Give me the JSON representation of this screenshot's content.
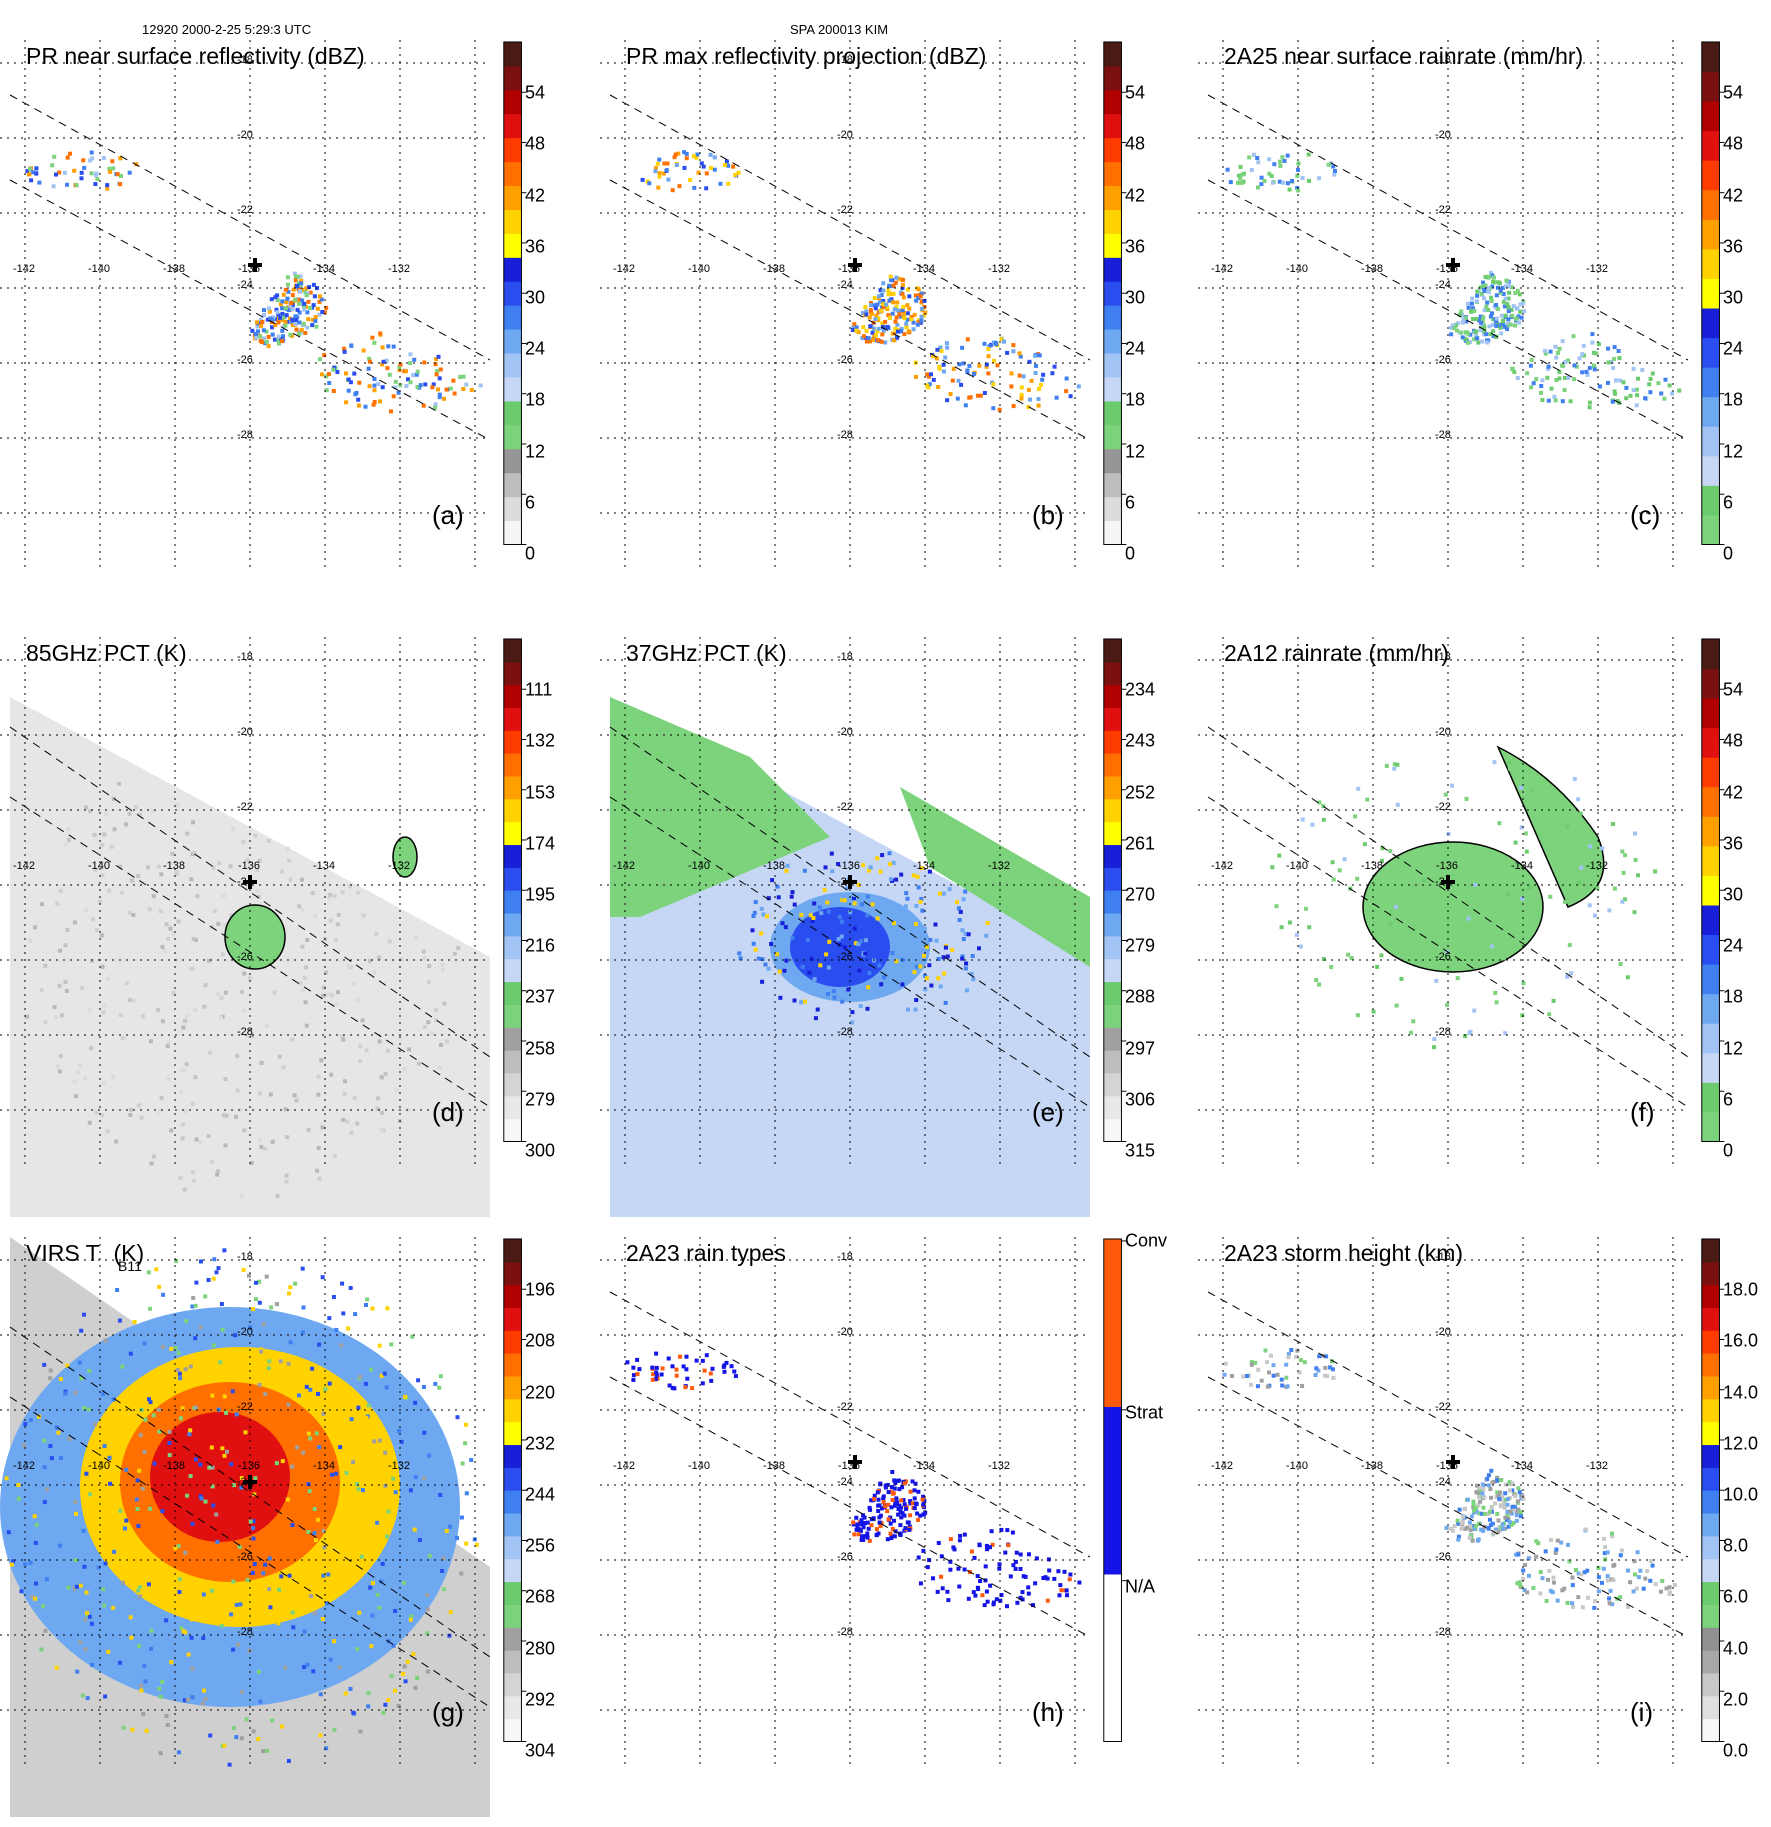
{
  "header": {
    "left": "12920 2000-2-25 5:29:3 UTC",
    "center": "SPA 200013 KIM"
  },
  "axes": {
    "lon_labels": [
      "-142",
      "-140",
      "-138",
      "-136",
      "-134",
      "-132"
    ],
    "lat_labels": [
      "-18",
      "-20",
      "-22",
      "-24",
      "-26",
      "-28"
    ]
  },
  "panels": [
    {
      "id": "a",
      "title": "PR near surface reflectivity (dBZ)",
      "label": "(a)",
      "type": "swath",
      "ticks": [
        "54",
        "48",
        "42",
        "36",
        "30",
        "24",
        "18",
        "12",
        "6",
        "0"
      ],
      "colors": [
        "#f5f5f5",
        "#dcdcdc",
        "#bdbdbd",
        "#969696",
        "#7cd37c",
        "#6ccb6c",
        "#c6d6f5",
        "#a2c4f5",
        "#6ea8f0",
        "#3f7ff0",
        "#2a4df0",
        "#1720d8",
        "#ffff00",
        "#ffd200",
        "#ffa000",
        "#ff7000",
        "#ff3c00",
        "#e01010",
        "#b00000",
        "#7a1010",
        "#4a1a14"
      ]
    },
    {
      "id": "b",
      "title": "PR max reflectivity projection (dBZ)",
      "label": "(b)",
      "type": "swath-contour",
      "ticks": [
        "54",
        "48",
        "42",
        "36",
        "30",
        "24",
        "18",
        "12",
        "6",
        "0"
      ],
      "colors": [
        "#f5f5f5",
        "#dcdcdc",
        "#bdbdbd",
        "#969696",
        "#7cd37c",
        "#6ccb6c",
        "#c6d6f5",
        "#a2c4f5",
        "#6ea8f0",
        "#3f7ff0",
        "#2a4df0",
        "#1720d8",
        "#ffff00",
        "#ffd200",
        "#ffa000",
        "#ff7000",
        "#ff3c00",
        "#e01010",
        "#b00000",
        "#7a1010",
        "#4a1a14"
      ]
    },
    {
      "id": "c",
      "title": "2A25 near surface rainrate (mm/hr)",
      "label": "(c)",
      "type": "swath-green",
      "ticks": [
        "54",
        "48",
        "42",
        "36",
        "30",
        "24",
        "18",
        "12",
        "6",
        "0"
      ],
      "colors": [
        "#7cd37c",
        "#6ccb6c",
        "#c6d6f5",
        "#a2c4f5",
        "#6ea8f0",
        "#3f7ff0",
        "#2a4df0",
        "#1720d8",
        "#ffff00",
        "#ffd200",
        "#ffa000",
        "#ff7000",
        "#ff3c00",
        "#e01010",
        "#b00000",
        "#7a1010",
        "#4a1a14"
      ]
    },
    {
      "id": "d",
      "title": "85GHz PCT (K)",
      "label": "(d)",
      "type": "tmi-gray",
      "ticks": [
        "111",
        "132",
        "153",
        "174",
        "195",
        "216",
        "237",
        "258",
        "279",
        "300"
      ],
      "colors": [
        "#f7f7f7",
        "#e8e8e8",
        "#d4d4d4",
        "#bdbdbd",
        "#a0a0a0",
        "#7cd37c",
        "#6ccb6c",
        "#c6d6f5",
        "#a2c4f5",
        "#6ea8f0",
        "#3f7ff0",
        "#2a4df0",
        "#1720d8",
        "#ffff00",
        "#ffd200",
        "#ffa000",
        "#ff7000",
        "#ff3c00",
        "#e01010",
        "#b00000",
        "#7a1010",
        "#4a1a14"
      ]
    },
    {
      "id": "e",
      "title": "37GHz PCT (K)",
      "label": "(e)",
      "type": "tmi-blue",
      "ticks": [
        "234",
        "243",
        "252",
        "261",
        "270",
        "279",
        "288",
        "297",
        "306",
        "315"
      ],
      "colors": [
        "#f7f7f7",
        "#e8e8e8",
        "#d4d4d4",
        "#bdbdbd",
        "#a0a0a0",
        "#7cd37c",
        "#6ccb6c",
        "#c6d6f5",
        "#a2c4f5",
        "#6ea8f0",
        "#3f7ff0",
        "#2a4df0",
        "#1720d8",
        "#ffff00",
        "#ffd200",
        "#ffa000",
        "#ff7000",
        "#ff3c00",
        "#e01010",
        "#b00000",
        "#7a1010",
        "#4a1a14"
      ]
    },
    {
      "id": "f",
      "title": "2A12 rainrate (mm/hr)",
      "label": "(f)",
      "type": "tmi-green",
      "ticks": [
        "54",
        "48",
        "42",
        "36",
        "30",
        "24",
        "18",
        "12",
        "6",
        "0"
      ],
      "colors": [
        "#7cd37c",
        "#6ccb6c",
        "#c6d6f5",
        "#a2c4f5",
        "#6ea8f0",
        "#3f7ff0",
        "#2a4df0",
        "#1720d8",
        "#ffff00",
        "#ffd200",
        "#ffa000",
        "#ff7000",
        "#ff3c00",
        "#e01010",
        "#b00000",
        "#7a1010",
        "#4a1a14"
      ]
    },
    {
      "id": "g",
      "title": "VIRS T   (K)",
      "subscript": "B11",
      "label": "(g)",
      "type": "virs",
      "ticks": [
        "196",
        "208",
        "220",
        "232",
        "244",
        "256",
        "268",
        "280",
        "292",
        "304"
      ],
      "colors": [
        "#f7f7f7",
        "#e8e8e8",
        "#d4d4d4",
        "#bdbdbd",
        "#a0a0a0",
        "#7cd37c",
        "#6ccb6c",
        "#c6d6f5",
        "#a2c4f5",
        "#6ea8f0",
        "#3f7ff0",
        "#2a4df0",
        "#1720d8",
        "#ffff00",
        "#ffd200",
        "#ffa000",
        "#ff7000",
        "#ff3c00",
        "#e01010",
        "#b00000",
        "#7a1010",
        "#4a1a14"
      ]
    },
    {
      "id": "h",
      "title": "2A23 rain types",
      "label": "(h)",
      "type": "raintype",
      "ticks": [
        "Conv",
        "Strat",
        "N/A"
      ],
      "colors": [
        "#ffffff",
        "#1414e6",
        "#ff5a0a"
      ]
    },
    {
      "id": "i",
      "title": "2A23 storm height (km)",
      "label": "(i)",
      "type": "height",
      "ticks": [
        "18.0",
        "16.0",
        "14.0",
        "12.0",
        "10.0",
        "8.0",
        "6.0",
        "4.0",
        "2.0",
        "0.0"
      ],
      "colors": [
        "#f7f7f7",
        "#e0e0e0",
        "#c8c8c8",
        "#a8a8a8",
        "#909090",
        "#7cd37c",
        "#6ccb6c",
        "#c6d6f5",
        "#a2c4f5",
        "#6ea8f0",
        "#3f7ff0",
        "#2a4df0",
        "#1720d8",
        "#ffff00",
        "#ffd200",
        "#ffa000",
        "#ff7000",
        "#ff3c00",
        "#e01010",
        "#b00000",
        "#7a1010",
        "#4a1a14"
      ]
    }
  ]
}
